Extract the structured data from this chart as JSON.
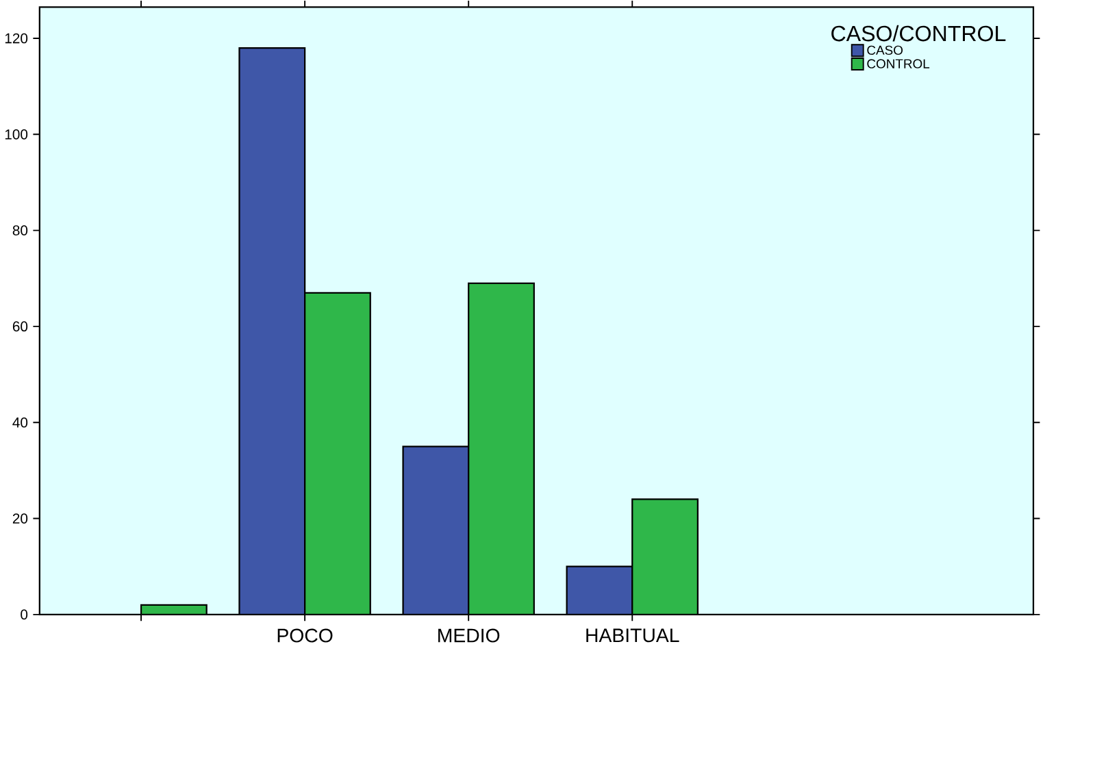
{
  "chart_data": {
    "type": "bar",
    "categories": [
      null,
      "POCO",
      "MEDIO",
      "HABITUAL"
    ],
    "series": [
      {
        "name": "CASO",
        "color": "#3f57a8",
        "values": [
          null,
          118,
          35,
          10
        ]
      },
      {
        "name": "CONTROL",
        "color": "#2fb74a",
        "values": [
          2,
          67,
          69,
          24
        ]
      }
    ],
    "legend_title": "CASO/CONTROL",
    "legend": "top right",
    "ylim": [
      0,
      126.5
    ],
    "yticks": [
      0,
      20,
      40,
      60,
      80,
      100,
      120
    ],
    "grid": false
  }
}
